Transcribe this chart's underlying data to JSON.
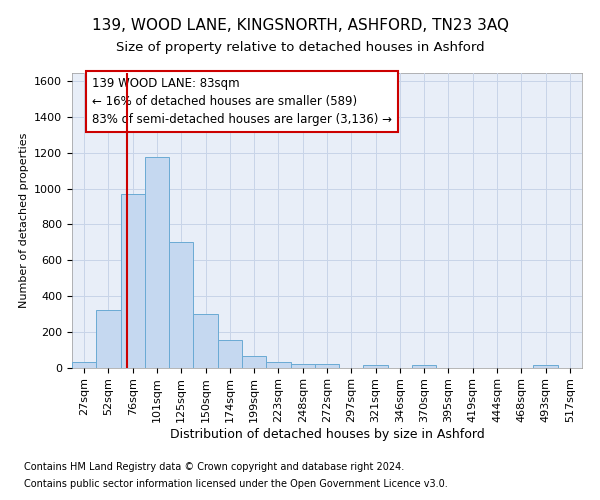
{
  "title1": "139, WOOD LANE, KINGSNORTH, ASHFORD, TN23 3AQ",
  "title2": "Size of property relative to detached houses in Ashford",
  "xlabel": "Distribution of detached houses by size in Ashford",
  "ylabel": "Number of detached properties",
  "footnote1": "Contains HM Land Registry data © Crown copyright and database right 2024.",
  "footnote2": "Contains public sector information licensed under the Open Government Licence v3.0.",
  "annotation_line1": "139 WOOD LANE: 83sqm",
  "annotation_line2": "← 16% of detached houses are smaller (589)",
  "annotation_line3": "83% of semi-detached houses are larger (3,136) →",
  "bar_color": "#c5d8f0",
  "bar_edge_color": "#6aaad4",
  "vline_color": "#cc0000",
  "annotation_box_edgecolor": "#cc0000",
  "grid_color": "#c8d4e8",
  "bg_color": "#e8eef8",
  "fig_bg_color": "#ffffff",
  "categories": [
    "27sqm",
    "52sqm",
    "76sqm",
    "101sqm",
    "125sqm",
    "150sqm",
    "174sqm",
    "199sqm",
    "223sqm",
    "248sqm",
    "272sqm",
    "297sqm",
    "321sqm",
    "346sqm",
    "370sqm",
    "395sqm",
    "419sqm",
    "444sqm",
    "468sqm",
    "493sqm",
    "517sqm"
  ],
  "values": [
    30,
    320,
    970,
    1175,
    700,
    300,
    155,
    65,
    30,
    20,
    20,
    0,
    15,
    0,
    12,
    0,
    0,
    0,
    0,
    12,
    0
  ],
  "ylim": [
    0,
    1650
  ],
  "yticks": [
    0,
    200,
    400,
    600,
    800,
    1000,
    1200,
    1400,
    1600
  ],
  "title1_fontsize": 11,
  "title2_fontsize": 9.5,
  "xlabel_fontsize": 9,
  "ylabel_fontsize": 8,
  "tick_fontsize": 8,
  "annotation_fontsize": 8.5,
  "footnote_fontsize": 7
}
